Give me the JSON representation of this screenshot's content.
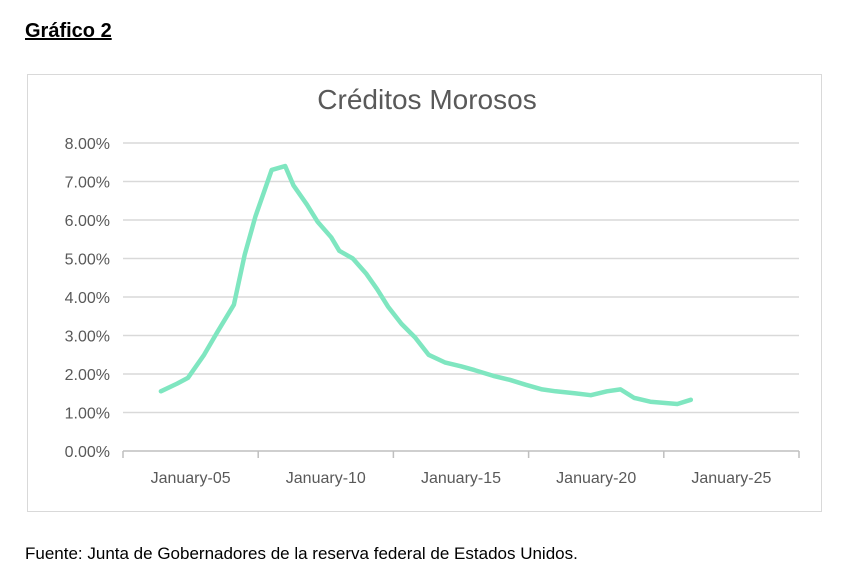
{
  "heading": "Gráfico 2",
  "source": "Fuente: Junta de Gobernadores de la reserva federal de Estados Unidos.",
  "chart_data": {
    "type": "line",
    "title": "Créditos Morosos",
    "xlabel": "",
    "ylabel": "",
    "x_ticks": [
      {
        "value": 2005,
        "label": "January-05"
      },
      {
        "value": 2010,
        "label": "January-10"
      },
      {
        "value": 2015,
        "label": "January-15"
      },
      {
        "value": 2020,
        "label": "January-20"
      },
      {
        "value": 2025,
        "label": "January-25"
      }
    ],
    "xlim": [
      2002.5,
      2027.5
    ],
    "y_ticks": [
      {
        "value": 0,
        "label": "0.00%"
      },
      {
        "value": 1,
        "label": "1.00%"
      },
      {
        "value": 2,
        "label": "2.00%"
      },
      {
        "value": 3,
        "label": "3.00%"
      },
      {
        "value": 4,
        "label": "4.00%"
      },
      {
        "value": 5,
        "label": "5.00%"
      },
      {
        "value": 6,
        "label": "6.00%"
      },
      {
        "value": 7,
        "label": "7.00%"
      },
      {
        "value": 8,
        "label": "8.00%"
      }
    ],
    "ylim": [
      0,
      8
    ],
    "grid": true,
    "series": [
      {
        "color": "#7fe6c0",
        "x": [
          2003.9,
          2004.5,
          2004.9,
          2005.5,
          2006.0,
          2006.6,
          2007.0,
          2007.4,
          2007.7,
          2008.0,
          2008.5,
          2008.8,
          2009.3,
          2009.7,
          2010.2,
          2010.5,
          2011.0,
          2011.5,
          2011.9,
          2012.3,
          2012.8,
          2013.3,
          2013.8,
          2014.4,
          2015.0,
          2015.5,
          2016.2,
          2016.8,
          2017.4,
          2018.0,
          2018.5,
          2019.2,
          2019.8,
          2020.4,
          2020.9,
          2021.4,
          2022.0,
          2022.5,
          2023.0,
          2023.5
        ],
        "values": [
          1.55,
          1.75,
          1.9,
          2.5,
          3.1,
          3.8,
          5.1,
          6.1,
          6.7,
          7.3,
          7.4,
          6.9,
          6.4,
          5.95,
          5.55,
          5.2,
          5.0,
          4.6,
          4.2,
          3.75,
          3.3,
          2.95,
          2.5,
          2.3,
          2.2,
          2.1,
          1.95,
          1.85,
          1.72,
          1.6,
          1.55,
          1.5,
          1.45,
          1.55,
          1.6,
          1.38,
          1.28,
          1.25,
          1.22,
          1.33
        ]
      }
    ]
  }
}
